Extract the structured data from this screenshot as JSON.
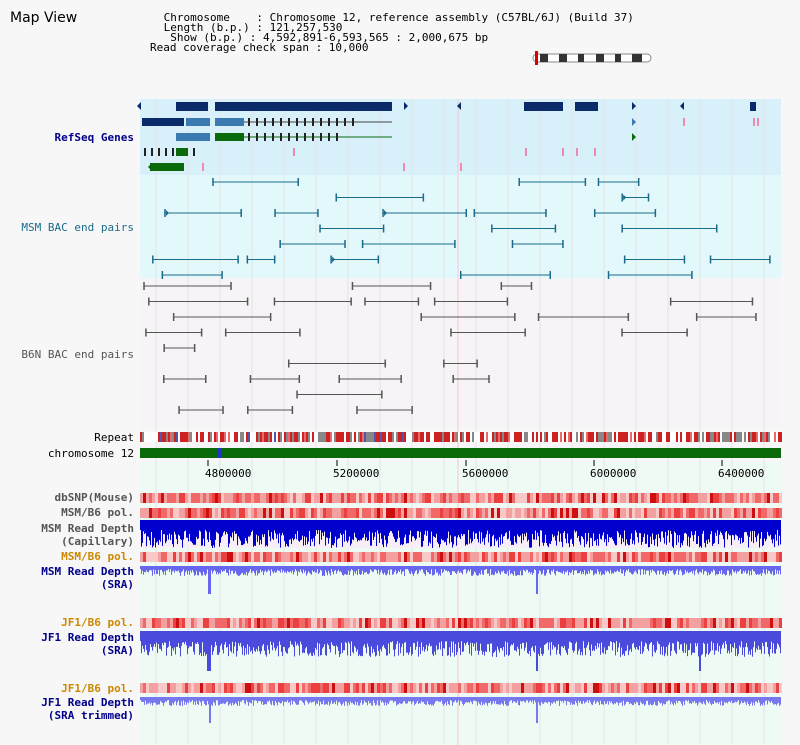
{
  "page": {
    "title": "Map View"
  },
  "info": {
    "chromosome": " Chromosome    : Chromosome 12, reference assembly (C57BL/6J) (Build 37)",
    "length": " Length (b.p.) : 121,257,530",
    "show": "  Show (b.p.) : 4,592,891-6,593,565 : 2,000,675 bp",
    "coverage": "Read coverage check span : 10,000"
  },
  "tracks": {
    "refseq": "RefSeq Genes",
    "msm_bac": "MSM BAC end pairs",
    "b6n_bac": "B6N BAC end pairs",
    "repeat": "Repeat",
    "chromosome": "chromosome 12",
    "dbsnp": "dbSNP(Mouse)",
    "msm_pol": "MSM/B6 pol.",
    "msm_depth_cap_1": "MSM Read Depth",
    "msm_depth_cap_2": "(Capillary)",
    "msm_pol2": "MSM/B6 pol.",
    "msm_sra_1": "MSM Read Depth",
    "msm_sra_2": "(SRA)",
    "jf1_pol": "JF1/B6 pol.",
    "jf1_sra_1": "JF1 Read Depth",
    "jf1_sra_2": "(SRA)",
    "jf1_pol2": "JF1/B6 pol.",
    "jf1_trim_1": "JF1 Read Depth",
    "jf1_trim_2": "(SRA trimmed)"
  },
  "axis": {
    "ticks": [
      "4800000",
      "5200000",
      "5600000",
      "6000000",
      "6400000"
    ]
  },
  "colors": {
    "gene_dark": "#0a2a6a",
    "gene_green": "#0a6a0a",
    "msm_bac": "#1a6a8a",
    "b6n_bac": "#555555",
    "chrom_bar": "#0a6a0a",
    "depth_blue": "#0000cc",
    "depth_light": "#6666ee",
    "label_blue": "#00008b",
    "label_orange": "#cc8800"
  }
}
